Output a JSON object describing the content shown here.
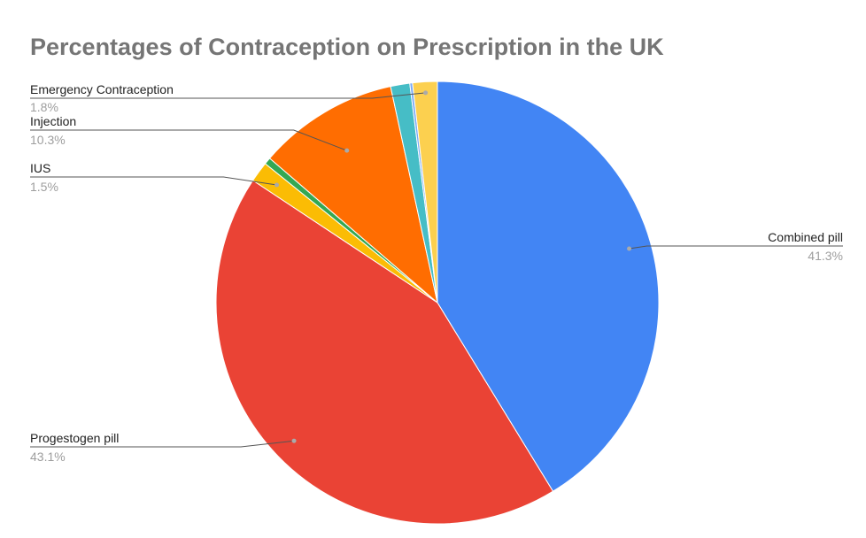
{
  "chart_data": {
    "type": "pie",
    "title": "Percentages of Contraception on Prescription in the UK",
    "slices": [
      {
        "name": "Combined pill",
        "percent_label": "41.3%",
        "value": 41.3,
        "color": "#4285F4"
      },
      {
        "name": "Progestogen pill",
        "percent_label": "43.1%",
        "value": 43.1,
        "color": "#EA4335"
      },
      {
        "name": "IUS",
        "percent_label": "1.5%",
        "value": 1.5,
        "color": "#FBBC04"
      },
      {
        "name": "",
        "percent_label": "",
        "value": 0.5,
        "color": "#34A853"
      },
      {
        "name": "Injection",
        "percent_label": "10.3%",
        "value": 10.3,
        "color": "#FF6D01"
      },
      {
        "name": "",
        "percent_label": "",
        "value": 1.4,
        "color": "#46BDC6"
      },
      {
        "name": "",
        "percent_label": "",
        "value": 0.2,
        "color": "#7BAAF7"
      },
      {
        "name": "Emergency Contraception",
        "percent_label": "1.8%",
        "value": 1.8,
        "color": "#FCD04F"
      }
    ],
    "legend": "none",
    "label_style": "callout lines with name and percentage"
  }
}
